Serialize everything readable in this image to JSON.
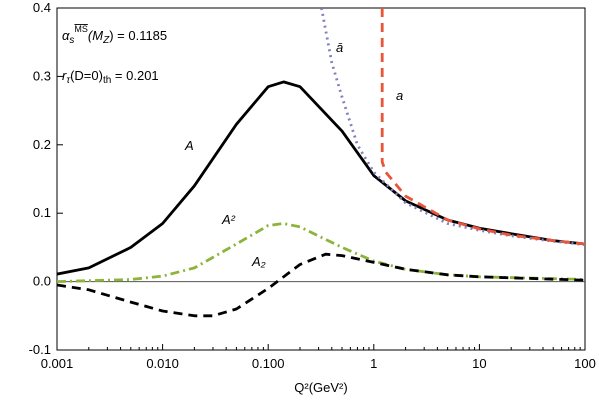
{
  "chart_data": {
    "type": "line",
    "x_label": "Q²(GeV²)",
    "annotations": [
      [
        "α",
        "s",
        "MS",
        "(M",
        "Z",
        ") = 0.1185"
      ],
      [
        "r",
        "τ",
        "(D=0)",
        "th",
        " = 0.201"
      ]
    ],
    "xscale": "log",
    "xlim": [
      0.001,
      100
    ],
    "xticks": [
      0.001,
      {
        "value": 0.01,
        "label": "0.010"
      },
      {
        "value": 0.1,
        "label": "0.100"
      },
      1,
      10,
      100
    ],
    "ylim": [
      -0.1,
      0.4
    ],
    "yticks": [
      -0.1,
      {
        "value": 0,
        "label": "0.0"
      },
      0.1,
      0.2,
      0.3,
      0.4
    ],
    "zero_line": true,
    "series": [
      {
        "name": "A",
        "color": "#000000",
        "dash": "solid",
        "x": [
          0.001,
          0.002,
          0.005,
          0.01,
          0.02,
          0.05,
          0.1,
          0.14,
          0.2,
          0.5,
          1,
          2,
          5,
          10,
          20,
          50,
          100
        ],
        "values": [
          0.011,
          0.02,
          0.05,
          0.085,
          0.14,
          0.23,
          0.285,
          0.292,
          0.285,
          0.22,
          0.155,
          0.118,
          0.09,
          0.078,
          0.07,
          0.06,
          0.055
        ]
      },
      {
        "name": "A²",
        "color": "#8db33a",
        "dash": "dashdot",
        "x": [
          0.001,
          0.005,
          0.01,
          0.02,
          0.05,
          0.1,
          0.14,
          0.2,
          0.5,
          1,
          2,
          5,
          10,
          100
        ],
        "values": [
          0.0,
          0.003,
          0.008,
          0.02,
          0.055,
          0.082,
          0.085,
          0.08,
          0.05,
          0.03,
          0.018,
          0.01,
          0.007,
          0.003
        ]
      },
      {
        "name": "A₂",
        "color": "#000000",
        "dash": "dashed",
        "x": [
          0.001,
          0.002,
          0.005,
          0.01,
          0.02,
          0.03,
          0.05,
          0.1,
          0.2,
          0.35,
          0.5,
          1,
          2,
          5,
          10,
          100
        ],
        "values": [
          -0.005,
          -0.012,
          -0.03,
          -0.043,
          -0.05,
          -0.05,
          -0.04,
          -0.01,
          0.025,
          0.04,
          0.038,
          0.028,
          0.018,
          0.01,
          0.007,
          0.002
        ]
      },
      {
        "name": "ā",
        "color": "#8080c0",
        "dash": "dotted",
        "x": [
          0.32,
          0.4,
          0.5,
          0.7,
          1,
          2,
          5,
          10,
          20,
          50,
          100
        ],
        "values": [
          0.4,
          0.32,
          0.27,
          0.2,
          0.16,
          0.115,
          0.085,
          0.075,
          0.067,
          0.059,
          0.054
        ]
      },
      {
        "name": "a",
        "color": "#e8553a",
        "dash": "dashed",
        "x": [
          1.2,
          1.2,
          1.3,
          2,
          5,
          10,
          20,
          50,
          100
        ],
        "values": [
          0.4,
          0.175,
          0.16,
          0.125,
          0.09,
          0.077,
          0.068,
          0.06,
          0.055
        ]
      }
    ]
  }
}
